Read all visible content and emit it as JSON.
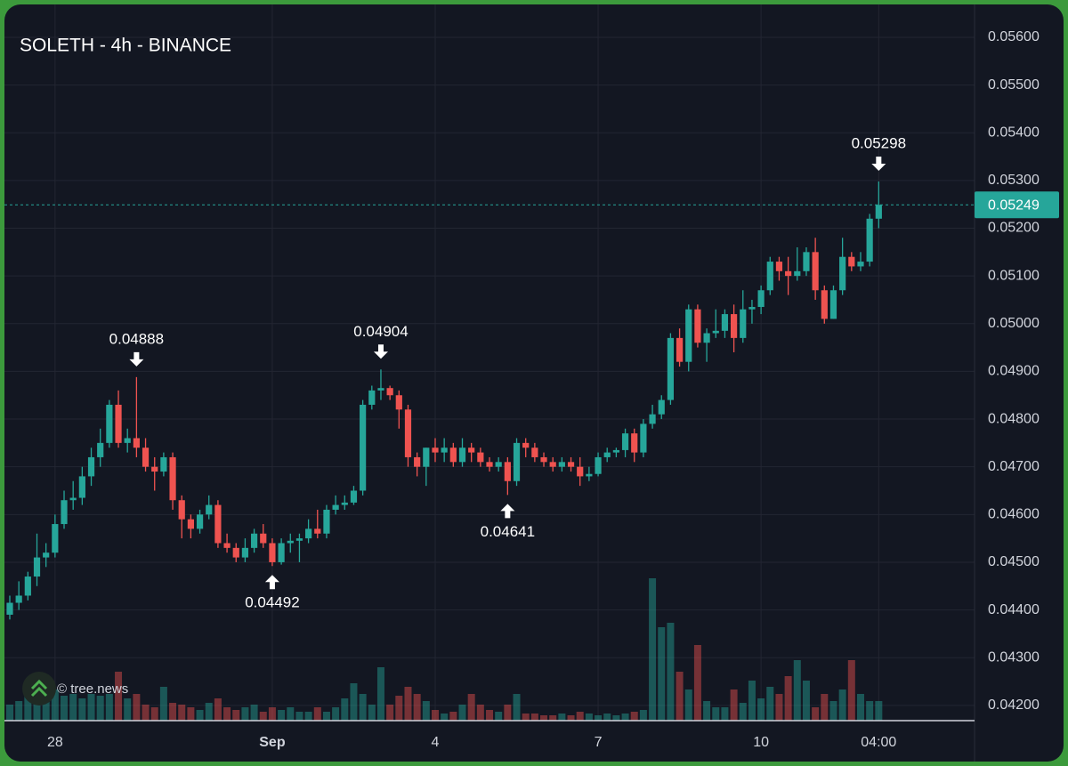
{
  "chart_data": {
    "type": "candlestick",
    "title": "SOLETH - 4h - BINANCE",
    "watermark": "© tree.news",
    "categories": [
      null,
      null,
      null,
      null,
      null,
      "28",
      null,
      null,
      null,
      null,
      null,
      null,
      null,
      null,
      null,
      null,
      null,
      null,
      null,
      null,
      null,
      null,
      null,
      null,
      null,
      null,
      null,
      null,
      null,
      "Sep",
      null,
      null,
      null,
      null,
      null,
      null,
      null,
      null,
      null,
      null,
      null,
      null,
      null,
      null,
      null,
      null,
      null,
      "4",
      null,
      null,
      null,
      null,
      null,
      null,
      null,
      null,
      null,
      null,
      null,
      null,
      null,
      null,
      null,
      null,
      null,
      "7",
      null,
      null,
      null,
      null,
      null,
      null,
      null,
      null,
      null,
      null,
      null,
      null,
      null,
      null,
      null,
      null,
      null,
      "10",
      null,
      null,
      null,
      null,
      null,
      null,
      null,
      null,
      null,
      null,
      null,
      null,
      "04:00"
    ],
    "open": [
      0.0439,
      0.04415,
      0.0443,
      0.0447,
      0.0451,
      0.0452,
      0.0458,
      0.0463,
      0.04635,
      0.0468,
      0.0472,
      0.0475,
      0.0483,
      0.0475,
      0.0476,
      0.0474,
      0.047,
      0.0469,
      0.0472,
      0.0463,
      0.0459,
      0.0457,
      0.046,
      0.0462,
      0.0454,
      0.0453,
      0.0451,
      0.0453,
      0.0456,
      0.0454,
      0.045,
      0.0454,
      0.04545,
      0.0455,
      0.0457,
      0.0456,
      0.0461,
      0.0462,
      0.04625,
      0.0465,
      0.0483,
      0.0486,
      0.04865,
      0.0485,
      0.0482,
      0.0472,
      0.047,
      0.0474,
      0.0473,
      0.0474,
      0.0471,
      0.0474,
      0.0473,
      0.0471,
      0.047,
      0.0471,
      0.0467,
      0.0475,
      0.0474,
      0.0472,
      0.0471,
      0.047,
      0.0471,
      0.047,
      0.0468,
      0.04685,
      0.0472,
      0.0473,
      0.04735,
      0.0477,
      0.0473,
      0.0479,
      0.0481,
      0.0484,
      0.0497,
      0.0492,
      0.0503,
      0.0496,
      0.0498,
      0.04985,
      0.0502,
      0.0497,
      0.0503,
      0.05035,
      0.0507,
      0.0513,
      0.0511,
      0.051,
      0.0511,
      0.0515,
      0.0507,
      0.0501,
      0.0507,
      0.0514,
      0.0512,
      0.0513,
      0.0522
    ],
    "high": [
      0.0443,
      0.0446,
      0.0448,
      0.0456,
      0.0454,
      0.046,
      0.0465,
      0.0467,
      0.047,
      0.0474,
      0.0478,
      0.0484,
      0.0486,
      0.0478,
      0.04888,
      0.0476,
      0.0472,
      0.0473,
      0.0473,
      0.0464,
      0.046,
      0.0461,
      0.0464,
      0.0463,
      0.0456,
      0.0454,
      0.0455,
      0.0457,
      0.0458,
      0.0455,
      0.0455,
      0.0456,
      0.0456,
      0.0459,
      0.0461,
      0.0462,
      0.0464,
      0.0464,
      0.0466,
      0.0484,
      0.0487,
      0.04904,
      0.0487,
      0.0486,
      0.0483,
      0.0473,
      0.0474,
      0.0476,
      0.0476,
      0.0475,
      0.0476,
      0.0475,
      0.0474,
      0.0472,
      0.0472,
      0.0472,
      0.0476,
      0.0476,
      0.0475,
      0.0473,
      0.0472,
      0.0472,
      0.0472,
      0.0472,
      0.047,
      0.0473,
      0.0474,
      0.0474,
      0.0478,
      0.0478,
      0.048,
      0.0483,
      0.0485,
      0.0498,
      0.0499,
      0.0504,
      0.0504,
      0.0499,
      0.0503,
      0.0503,
      0.0504,
      0.0507,
      0.0505,
      0.0508,
      0.0514,
      0.0514,
      0.0514,
      0.0516,
      0.0516,
      0.0518,
      0.0508,
      0.0508,
      0.0518,
      0.0515,
      0.0515,
      0.0523,
      0.05298
    ],
    "low": [
      0.0438,
      0.044,
      0.0442,
      0.0445,
      0.0449,
      0.0451,
      0.0457,
      0.0461,
      0.0462,
      0.0466,
      0.047,
      0.0474,
      0.0474,
      0.0473,
      0.0472,
      0.0469,
      0.0465,
      0.0468,
      0.0461,
      0.0455,
      0.0455,
      0.0456,
      0.0459,
      0.0453,
      0.0452,
      0.045,
      0.045,
      0.0452,
      0.0453,
      0.04492,
      0.04495,
      0.0452,
      0.045,
      0.0454,
      0.0455,
      0.0455,
      0.046,
      0.0461,
      0.0462,
      0.0464,
      0.0482,
      0.0484,
      0.0484,
      0.0478,
      0.047,
      0.0468,
      0.0466,
      0.0471,
      0.0471,
      0.047,
      0.047,
      0.0471,
      0.047,
      0.0469,
      0.0469,
      0.04641,
      0.0466,
      0.0472,
      0.0471,
      0.047,
      0.0469,
      0.0469,
      0.0469,
      0.0466,
      0.0467,
      0.0468,
      0.0471,
      0.0472,
      0.0472,
      0.0471,
      0.0472,
      0.0478,
      0.048,
      0.0483,
      0.0491,
      0.049,
      0.0495,
      0.0492,
      0.0497,
      0.0497,
      0.0494,
      0.0496,
      0.05,
      0.0502,
      0.0506,
      0.0509,
      0.0506,
      0.0509,
      0.051,
      0.0505,
      0.05,
      0.0501,
      0.0506,
      0.0511,
      0.0511,
      0.0512,
      0.052
    ],
    "close": [
      0.04415,
      0.0443,
      0.0447,
      0.0451,
      0.0452,
      0.0458,
      0.0463,
      0.04635,
      0.0468,
      0.0472,
      0.0475,
      0.0483,
      0.0475,
      0.0476,
      0.0474,
      0.047,
      0.0469,
      0.0472,
      0.0463,
      0.0459,
      0.0457,
      0.046,
      0.0462,
      0.0454,
      0.0453,
      0.0451,
      0.0453,
      0.0456,
      0.0454,
      0.045,
      0.0454,
      0.04545,
      0.0455,
      0.0457,
      0.0456,
      0.0461,
      0.0462,
      0.04625,
      0.0465,
      0.0483,
      0.0486,
      0.04865,
      0.0485,
      0.0482,
      0.0472,
      0.047,
      0.0474,
      0.0473,
      0.0474,
      0.0471,
      0.0474,
      0.0473,
      0.0471,
      0.047,
      0.0471,
      0.0467,
      0.0475,
      0.0474,
      0.0472,
      0.0471,
      0.047,
      0.0471,
      0.047,
      0.0468,
      0.04685,
      0.0472,
      0.0473,
      0.04735,
      0.0477,
      0.0473,
      0.0479,
      0.0481,
      0.0484,
      0.0497,
      0.0492,
      0.0503,
      0.0496,
      0.0498,
      0.04985,
      0.0502,
      0.0497,
      0.0503,
      0.05035,
      0.0507,
      0.0513,
      0.0511,
      0.051,
      0.0511,
      0.0515,
      0.0507,
      0.0501,
      0.0507,
      0.0514,
      0.0512,
      0.0513,
      0.0522,
      0.05249
    ],
    "volume": [
      18,
      22,
      28,
      25,
      30,
      35,
      28,
      30,
      25,
      30,
      28,
      30,
      55,
      25,
      30,
      18,
      15,
      38,
      20,
      18,
      15,
      12,
      20,
      25,
      15,
      12,
      15,
      18,
      10,
      15,
      12,
      15,
      10,
      10,
      15,
      10,
      15,
      25,
      42,
      30,
      18,
      60,
      18,
      28,
      38,
      30,
      22,
      12,
      8,
      10,
      18,
      30,
      18,
      12,
      10,
      18,
      30,
      8,
      8,
      6,
      6,
      8,
      6,
      10,
      8,
      6,
      8,
      6,
      8,
      10,
      12,
      160,
      105,
      110,
      55,
      35,
      85,
      22,
      15,
      15,
      35,
      20,
      45,
      25,
      38,
      30,
      50,
      68,
      45,
      15,
      30,
      22,
      35,
      68,
      30,
      22,
      22
    ],
    "up_color": "#26a69a",
    "down_color": "#ef5350",
    "ylim": [
      0.04168,
      0.05669
    ],
    "yticks": [
      {
        "value": 0.042,
        "label": "0.04200"
      },
      {
        "value": 0.043,
        "label": "0.04300"
      },
      {
        "value": 0.044,
        "label": "0.04400"
      },
      {
        "value": 0.045,
        "label": "0.04500"
      },
      {
        "value": 0.046,
        "label": "0.04600"
      },
      {
        "value": 0.047,
        "label": "0.04700"
      },
      {
        "value": 0.048,
        "label": "0.04800"
      },
      {
        "value": 0.049,
        "label": "0.04900"
      },
      {
        "value": 0.05,
        "label": "0.05000"
      },
      {
        "value": 0.051,
        "label": "0.05100"
      },
      {
        "value": 0.052,
        "label": "0.05200"
      },
      {
        "value": 0.053,
        "label": "0.05300"
      },
      {
        "value": 0.054,
        "label": "0.05400"
      },
      {
        "value": 0.055,
        "label": "0.05500"
      },
      {
        "value": 0.056,
        "label": "0.05600"
      }
    ],
    "grid": true,
    "annotations": [
      {
        "x": 14,
        "y": 0.04888,
        "position": "above"
      },
      {
        "x": 29,
        "y": 0.04492,
        "position": "below"
      },
      {
        "x": 41,
        "y": 0.04904,
        "position": "above"
      },
      {
        "x": 55,
        "y": 0.04641,
        "position": "below"
      },
      {
        "x": 96,
        "y": 0.05298,
        "position": "above"
      }
    ]
  }
}
